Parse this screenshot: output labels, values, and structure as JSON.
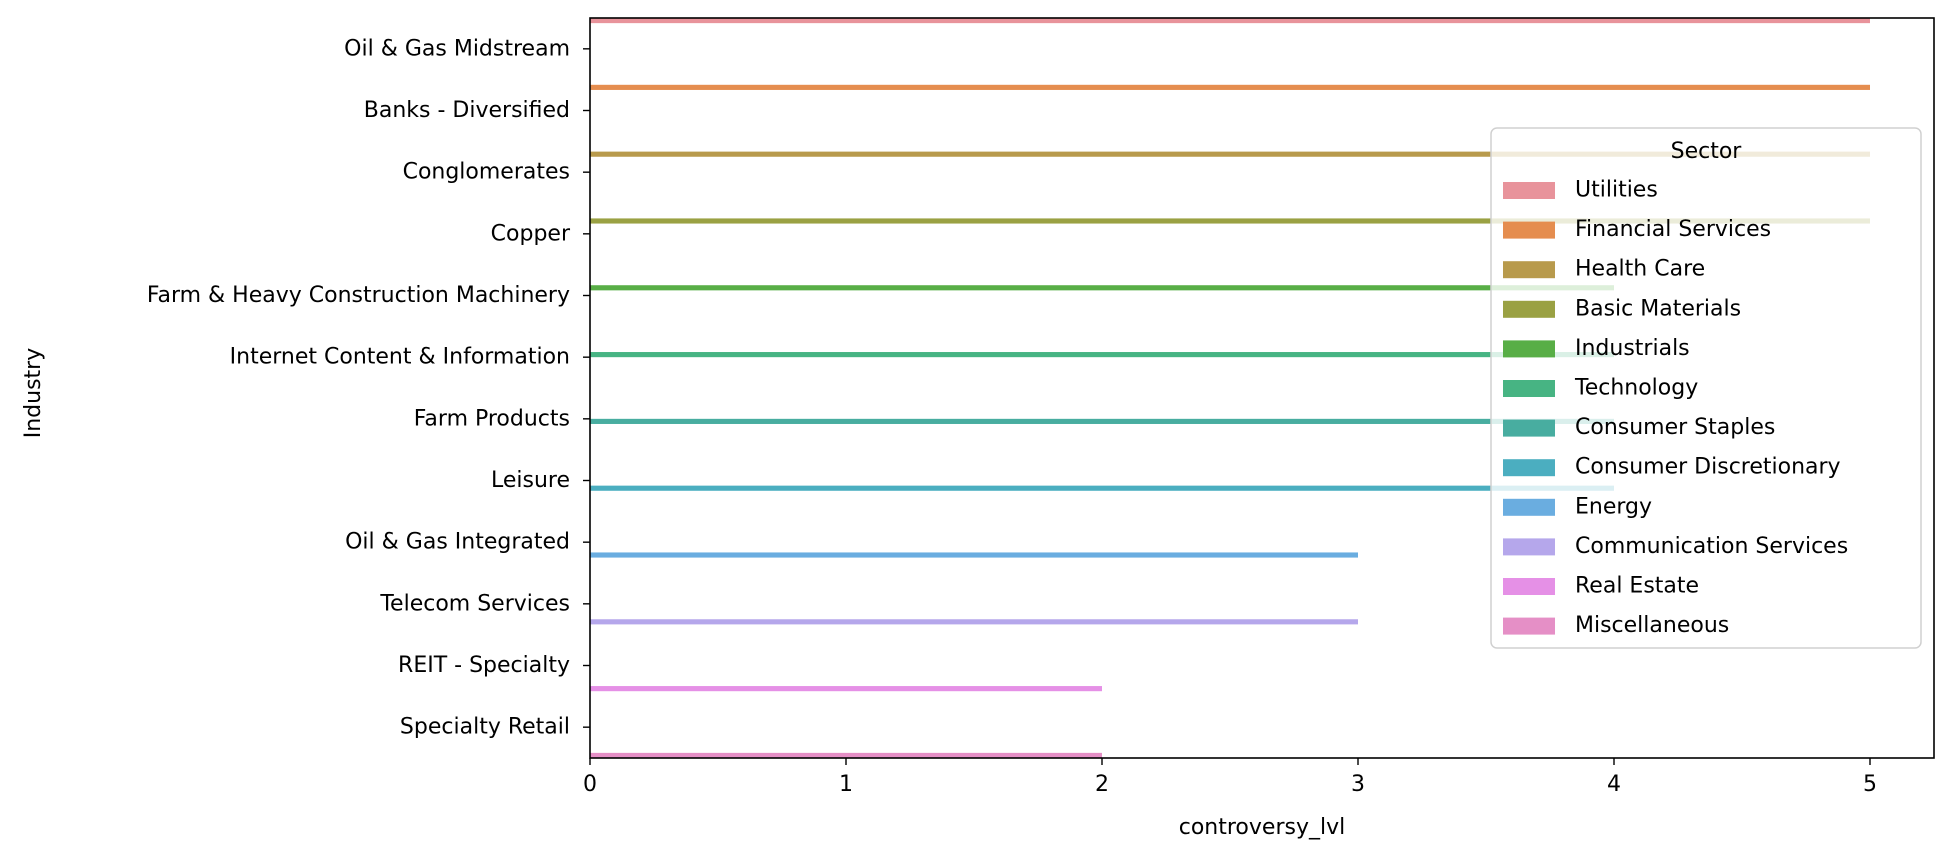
{
  "chart_data": {
    "type": "bar",
    "orientation": "horizontal",
    "xlabel": "controversy_lvl",
    "ylabel": "Industry",
    "xlim": [
      0,
      5.25
    ],
    "xticks": [
      "0",
      "1",
      "2",
      "3",
      "4",
      "5"
    ],
    "grid": false,
    "legend_position": "right",
    "categories": [
      "Oil & Gas Midstream",
      "Banks - Diversified",
      "Conglomerates",
      "Copper",
      "Farm & Heavy Construction Machinery",
      "Internet Content & Information",
      "Farm Products",
      "Leisure",
      "Oil & Gas Integrated",
      "Telecom Services",
      "REIT - Specialty",
      "Specialty Retail"
    ],
    "legend_title": "Sector",
    "series": [
      {
        "name": "Utilities",
        "color": "#e8939b",
        "category": "Oil & Gas Midstream",
        "value": 5
      },
      {
        "name": "Financial Services",
        "color": "#e58d4f",
        "category": "Banks - Diversified",
        "value": 5
      },
      {
        "name": "Health Care",
        "color": "#b89a4c",
        "category": "Conglomerates",
        "value": 5
      },
      {
        "name": "Basic Materials",
        "color": "#9aa143",
        "category": "Copper",
        "value": 5
      },
      {
        "name": "Industrials",
        "color": "#58ae46",
        "category": "Farm & Heavy Construction Machinery",
        "value": 4
      },
      {
        "name": "Technology",
        "color": "#47b483",
        "category": "Internet Content & Information",
        "value": 4
      },
      {
        "name": "Consumer Staples",
        "color": "#48ada0",
        "category": "Farm Products",
        "value": 4
      },
      {
        "name": "Consumer Discretionary",
        "color": "#4baec0",
        "category": "Leisure",
        "value": 4
      },
      {
        "name": "Energy",
        "color": "#6aade0",
        "category": "Oil & Gas Integrated",
        "value": 3
      },
      {
        "name": "Communication Services",
        "color": "#b5a7eb",
        "category": "Telecom Services",
        "value": 3
      },
      {
        "name": "Real Estate",
        "color": "#e590e6",
        "category": "REIT - Specialty",
        "value": 2
      },
      {
        "name": "Miscellaneous",
        "color": "#e58fc6",
        "category": "Specialty Retail",
        "value": 2
      }
    ]
  }
}
